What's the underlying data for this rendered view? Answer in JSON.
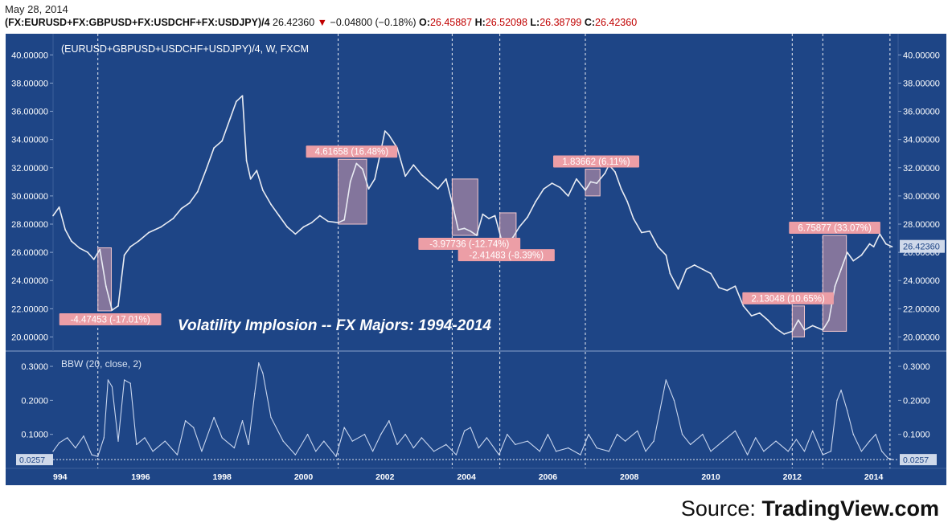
{
  "header": {
    "date": "May 28, 2014",
    "symbol": "(FX:EURUSD+FX:GBPUSD+FX:USDCHF+FX:USDJPY)/4",
    "last": "26.42360",
    "change": "−0.04800 (−0.18%)",
    "o_label": "O:",
    "o": "26.45887",
    "h_label": "H:",
    "h": "26.52098",
    "l_label": "L:",
    "l": "26.38799",
    "c_label": "C:",
    "c": "26.42360"
  },
  "source": {
    "prefix": "Source: ",
    "brand": "TradingView.com"
  },
  "colors": {
    "background": "#1e4586",
    "line": "#e9ecf3",
    "box": "#ffb0b8",
    "label": "#ec9ea6",
    "divider": "#8aa4cc"
  },
  "chart_data": [
    {
      "type": "line",
      "title": "(EURUSD+GBPUSD+USDCHF+USDJPY)/4, W, FXCM",
      "annotation": "Volatility Implosion -- FX Majors: 1994-2014",
      "xlim": [
        1993.85,
        2014.6
      ],
      "ylim": [
        19.0,
        41.5
      ],
      "x_ticks": [
        "994",
        "1996",
        "1998",
        "2000",
        "2002",
        "2004",
        "2006",
        "2008",
        "2010",
        "2012",
        "2014"
      ],
      "y_ticks": [
        "20.00000",
        "22.00000",
        "24.00000",
        "26.00000",
        "28.00000",
        "30.00000",
        "32.00000",
        "34.00000",
        "36.00000",
        "38.00000",
        "40.00000"
      ],
      "current_value": 26.4236,
      "vertical_dashed_lines": [
        1994.95,
        2000.85,
        2003.65,
        2004.82,
        2006.92,
        2012.0,
        2012.75,
        2014.4
      ],
      "series": [
        {
          "x": [
            1993.85,
            1994.0,
            1994.15,
            1994.3,
            1994.5,
            1994.7,
            1994.85,
            1995.0,
            1995.15,
            1995.3,
            1995.45,
            1995.6,
            1995.75,
            1995.95,
            1996.2,
            1996.5,
            1996.8,
            1997.0,
            1997.2,
            1997.4,
            1997.6,
            1997.8,
            1998.0,
            1998.2,
            1998.35,
            1998.5,
            1998.6,
            1998.7,
            1998.85,
            1999.0,
            1999.2,
            1999.4,
            1999.6,
            1999.8,
            2000.0,
            2000.2,
            2000.4,
            2000.6,
            2000.85,
            2001.0,
            2001.15,
            2001.3,
            2001.45,
            2001.6,
            2001.75,
            2001.9,
            2002.0,
            2002.1,
            2002.3,
            2002.5,
            2002.7,
            2002.9,
            2003.1,
            2003.3,
            2003.5,
            2003.65,
            2003.8,
            2003.95,
            2004.1,
            2004.25,
            2004.4,
            2004.55,
            2004.7,
            2004.85,
            2005.0,
            2005.15,
            2005.3,
            2005.5,
            2005.7,
            2005.9,
            2006.1,
            2006.3,
            2006.5,
            2006.7,
            2006.92,
            2007.05,
            2007.2,
            2007.4,
            2007.5,
            2007.65,
            2007.8,
            2007.95,
            2008.1,
            2008.3,
            2008.5,
            2008.7,
            2008.9,
            2009.0,
            2009.2,
            2009.4,
            2009.6,
            2009.8,
            2010.0,
            2010.2,
            2010.4,
            2010.6,
            2010.8,
            2011.0,
            2011.2,
            2011.4,
            2011.6,
            2011.8,
            2012.0,
            2012.15,
            2012.3,
            2012.5,
            2012.75,
            2012.9,
            2013.05,
            2013.2,
            2013.35,
            2013.5,
            2013.7,
            2013.9,
            2014.0,
            2014.15,
            2014.3,
            2014.45
          ],
          "y": [
            28.6,
            29.2,
            27.6,
            26.8,
            26.3,
            26.0,
            25.5,
            26.2,
            23.6,
            21.9,
            22.2,
            25.8,
            26.4,
            26.8,
            27.4,
            27.8,
            28.4,
            29.1,
            29.5,
            30.3,
            31.8,
            33.4,
            33.9,
            35.5,
            36.7,
            37.1,
            32.5,
            31.2,
            31.8,
            30.4,
            29.4,
            28.6,
            27.8,
            27.3,
            27.8,
            28.1,
            28.6,
            28.2,
            28.1,
            28.3,
            31.0,
            32.3,
            31.9,
            30.5,
            31.2,
            33.2,
            34.6,
            34.3,
            33.4,
            31.4,
            32.2,
            31.5,
            31.0,
            30.5,
            31.2,
            29.5,
            27.6,
            27.7,
            27.5,
            27.2,
            28.7,
            28.4,
            28.6,
            27.0,
            26.6,
            27.1,
            27.8,
            28.5,
            29.6,
            30.5,
            30.9,
            30.6,
            30.0,
            31.2,
            30.4,
            31.0,
            30.9,
            31.6,
            32.2,
            31.7,
            30.5,
            29.6,
            28.4,
            27.4,
            27.5,
            26.4,
            25.8,
            24.5,
            23.4,
            24.8,
            25.1,
            24.8,
            24.5,
            23.5,
            23.3,
            23.6,
            22.2,
            21.5,
            21.7,
            21.2,
            20.6,
            20.2,
            20.4,
            21.2,
            20.5,
            20.8,
            20.5,
            21.2,
            23.6,
            24.8,
            26.0,
            25.4,
            25.8,
            26.6,
            26.4,
            27.3,
            26.6,
            26.4
          ]
        }
      ],
      "annotations": [
        {
          "label": "-4.47453 (-17.01%)",
          "x0": 1994.95,
          "x1": 1995.28,
          "y0": 21.85,
          "y1": 26.32
        },
        {
          "label": "4.61658 (16.48%)",
          "x0": 2000.85,
          "x1": 2001.55,
          "y0": 28.0,
          "y1": 32.6
        },
        {
          "label": "-3.97736 (-12.74%)",
          "x0": 2003.65,
          "x1": 2004.28,
          "y0": 27.2,
          "y1": 31.2
        },
        {
          "label": "-2.41483 (-8.39%)",
          "x0": 2004.82,
          "x1": 2005.22,
          "y0": 26.4,
          "y1": 28.8
        },
        {
          "label": "1.83662 (6.11%)",
          "x0": 2006.92,
          "x1": 2007.28,
          "y0": 30.0,
          "y1": 31.9
        },
        {
          "label": "2.13048 (10.65%)",
          "x0": 2012.0,
          "x1": 2012.3,
          "y0": 20.0,
          "y1": 22.2
        },
        {
          "label": "6.75877 (33.07%)",
          "x0": 2012.75,
          "x1": 2013.33,
          "y0": 20.4,
          "y1": 27.2
        }
      ]
    },
    {
      "type": "line",
      "title": "BBW (20, close, 2)",
      "xlim": [
        1993.85,
        2014.6
      ],
      "ylim": [
        0.0,
        0.345
      ],
      "y_ticks": [
        "0.1000",
        "0.2000",
        "0.3000"
      ],
      "current_value": 0.0257,
      "current_label": "0.0257",
      "series": [
        {
          "x": [
            1993.85,
            1994.0,
            1994.2,
            1994.4,
            1994.6,
            1994.8,
            1994.95,
            1995.1,
            1995.2,
            1995.3,
            1995.45,
            1995.6,
            1995.75,
            1995.9,
            1996.1,
            1996.3,
            1996.6,
            1996.9,
            1997.1,
            1997.3,
            1997.5,
            1997.8,
            1998.0,
            1998.3,
            1998.5,
            1998.65,
            1998.8,
            1998.9,
            1999.0,
            1999.2,
            1999.5,
            1999.8,
            2000.1,
            2000.3,
            2000.5,
            2000.8,
            2001.0,
            2001.2,
            2001.5,
            2001.7,
            2001.9,
            2002.1,
            2002.3,
            2002.5,
            2002.7,
            2002.9,
            2003.2,
            2003.5,
            2003.75,
            2003.95,
            2004.1,
            2004.3,
            2004.5,
            2004.8,
            2005.0,
            2005.2,
            2005.5,
            2005.8,
            2006.0,
            2006.2,
            2006.5,
            2006.8,
            2007.0,
            2007.2,
            2007.5,
            2007.7,
            2007.9,
            2008.2,
            2008.4,
            2008.6,
            2008.75,
            2008.9,
            2009.1,
            2009.3,
            2009.5,
            2009.8,
            2010.0,
            2010.3,
            2010.6,
            2010.9,
            2011.1,
            2011.3,
            2011.6,
            2011.9,
            2012.1,
            2012.3,
            2012.5,
            2012.75,
            2012.95,
            2013.1,
            2013.2,
            2013.35,
            2013.5,
            2013.7,
            2013.9,
            2014.05,
            2014.2,
            2014.35,
            2014.45
          ],
          "y": [
            0.05,
            0.075,
            0.09,
            0.06,
            0.095,
            0.04,
            0.035,
            0.09,
            0.26,
            0.24,
            0.08,
            0.26,
            0.25,
            0.07,
            0.09,
            0.05,
            0.08,
            0.04,
            0.14,
            0.12,
            0.05,
            0.15,
            0.09,
            0.06,
            0.14,
            0.07,
            0.22,
            0.31,
            0.28,
            0.15,
            0.08,
            0.04,
            0.1,
            0.05,
            0.08,
            0.035,
            0.12,
            0.08,
            0.1,
            0.05,
            0.1,
            0.14,
            0.07,
            0.1,
            0.06,
            0.09,
            0.05,
            0.07,
            0.04,
            0.11,
            0.12,
            0.06,
            0.09,
            0.04,
            0.1,
            0.07,
            0.08,
            0.05,
            0.1,
            0.05,
            0.06,
            0.04,
            0.1,
            0.06,
            0.05,
            0.1,
            0.08,
            0.11,
            0.05,
            0.08,
            0.17,
            0.26,
            0.2,
            0.1,
            0.07,
            0.1,
            0.05,
            0.08,
            0.11,
            0.04,
            0.09,
            0.05,
            0.08,
            0.05,
            0.085,
            0.05,
            0.11,
            0.04,
            0.05,
            0.2,
            0.23,
            0.17,
            0.1,
            0.05,
            0.08,
            0.1,
            0.05,
            0.03,
            0.026
          ]
        }
      ]
    }
  ]
}
